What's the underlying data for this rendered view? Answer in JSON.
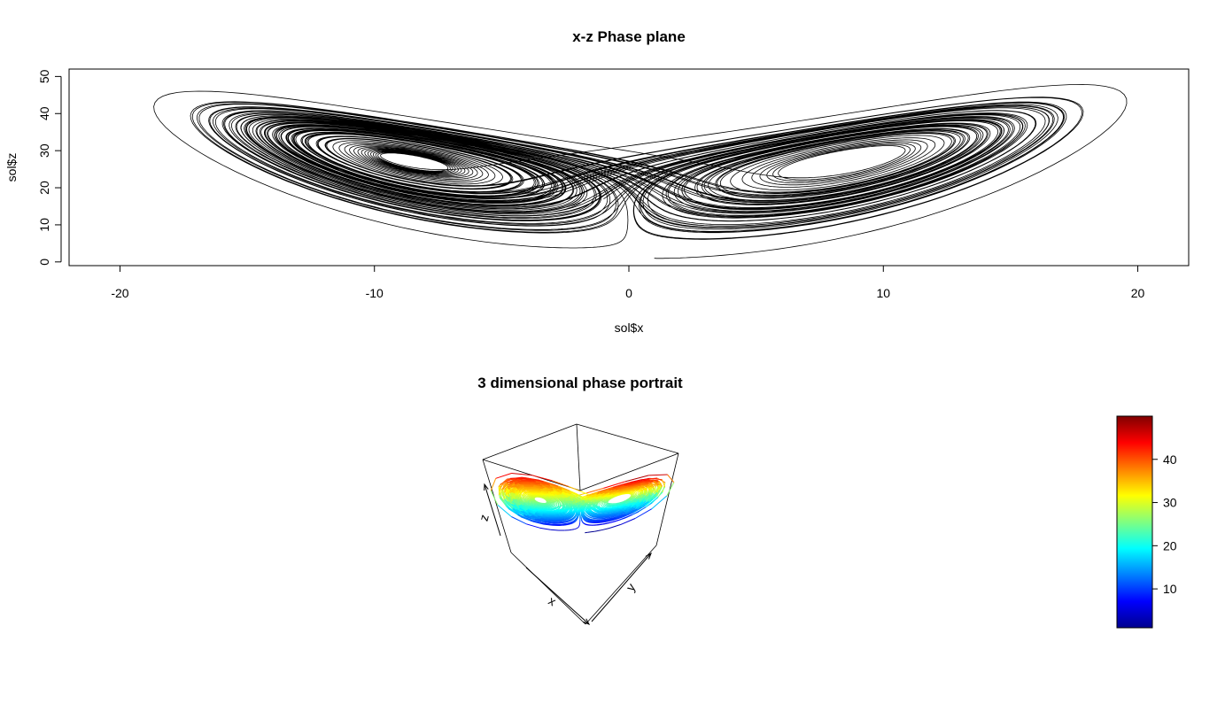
{
  "chart_data": [
    {
      "type": "line",
      "title": "x-z Phase plane",
      "xlabel": "sol$x",
      "ylabel": "sol$z",
      "xlim": [
        -22,
        22
      ],
      "ylim": [
        -1,
        52
      ],
      "x_ticks": [
        "-20",
        "-10",
        "0",
        "10",
        "20"
      ],
      "x_tick_values": [
        -20,
        -10,
        0,
        10,
        20
      ],
      "y_ticks": [
        "0",
        "10",
        "20",
        "30",
        "40",
        "50"
      ],
      "y_tick_values": [
        0,
        10,
        20,
        30,
        40,
        50
      ],
      "grid": false,
      "series": [
        {
          "points": [
            [
              1,
              1
            ],
            [
              -20,
              44
            ],
            [
              20,
              48
            ],
            [
              -17,
              42
            ],
            [
              17,
              41
            ],
            [
              -8.5,
              27
            ],
            [
              8.5,
              27
            ],
            [
              0,
              0.5
            ]
          ]
        }
      ]
    },
    {
      "type": "line",
      "title": "3 dimensional phase portrait",
      "axis_labels": [
        "x",
        "y",
        "z"
      ],
      "colorbar": {
        "ticks": [
          "10",
          "20",
          "30",
          "40"
        ],
        "tick_values": [
          10,
          20,
          30,
          40
        ],
        "range": [
          1,
          50
        ],
        "colors": [
          "#00008f",
          "#0000ff",
          "#0080ff",
          "#00ffff",
          "#80ff80",
          "#ffff00",
          "#ff8000",
          "#ff0000",
          "#800000"
        ]
      },
      "grid": false
    }
  ]
}
